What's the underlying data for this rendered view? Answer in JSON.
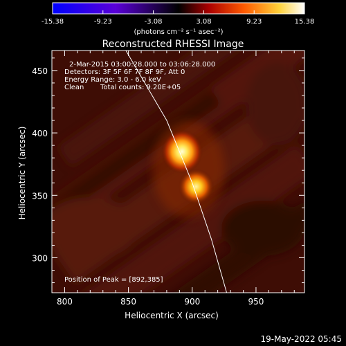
{
  "colorbar": {
    "ticks": [
      "-15.38",
      "-9.23",
      "-3.08",
      "3.08",
      "9.23",
      "15.38"
    ],
    "tick_values": [
      -15.38,
      -9.23,
      -3.08,
      3.08,
      9.23,
      15.38
    ],
    "range": [
      -15.38,
      15.38
    ],
    "unit_label": "(photons cm⁻² s⁻¹ asec⁻²)"
  },
  "title": "Reconstructed RHESSI Image",
  "info": {
    "line1": "2-Mar-2015 03:00:28.000 to 03:06:28.000",
    "line2": "Detectors: 3F 5F 6F 7F 8F 9F, Att 0",
    "line3": "Energy Range: 3.0 - 6.0 keV",
    "line4_left": "Clean",
    "line4_right": "Total counts: 9.20E+05",
    "peak": "Position of Peak = [892,385]"
  },
  "chart_data": {
    "type": "heatmap",
    "title": "Reconstructed RHESSI Image",
    "xlabel": "Heliocentric X (arcsec)",
    "ylabel": "Heliocentric Y (arcsec)",
    "xlim": [
      790,
      988
    ],
    "ylim": [
      272,
      466
    ],
    "x_ticks": [
      800,
      850,
      900,
      950
    ],
    "y_ticks": [
      300,
      350,
      400,
      450
    ],
    "x_tick_labels": [
      "800",
      "850",
      "900",
      "950"
    ],
    "y_tick_labels": [
      "300",
      "350",
      "400",
      "450"
    ],
    "peaks": [
      {
        "x": 892,
        "y": 385,
        "intensity": 15.38
      },
      {
        "x": 903,
        "y": 357,
        "intensity": 11.5
      }
    ],
    "limb_curve": [
      [
        848,
        466
      ],
      [
        880,
        410
      ],
      [
        900,
        360
      ],
      [
        915,
        315
      ],
      [
        927,
        272
      ]
    ]
  },
  "footer": {
    "timestamp": "19-May-2022 05:45"
  }
}
